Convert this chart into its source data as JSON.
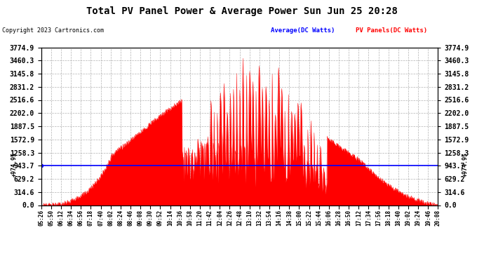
{
  "title": "Total PV Panel Power & Average Power Sun Jun 25 20:28",
  "copyright": "Copyright 2023 Cartronics.com",
  "legend_avg": "Average(DC Watts)",
  "legend_pv": "PV Panels(DC Watts)",
  "ymin": 0.0,
  "ymax": 3774.9,
  "yticks": [
    0.0,
    314.6,
    629.2,
    943.7,
    1258.3,
    1572.9,
    1887.5,
    2202.0,
    2516.6,
    2831.2,
    3145.8,
    3460.3,
    3774.9
  ],
  "average_line_y": 943.7,
  "side_label_value": 974.95,
  "bg_color": "#ffffff",
  "grid_color": "#aaaaaa",
  "fill_color": "#ff0000",
  "line_color": "#0000ff",
  "title_color": "#000000",
  "copyright_color": "#000000",
  "avg_label_color": "#0000ff",
  "pv_label_color": "#ff0000",
  "x_tick_labels": [
    "05:26",
    "05:50",
    "06:12",
    "06:34",
    "06:56",
    "07:18",
    "07:40",
    "08:02",
    "08:24",
    "08:46",
    "09:08",
    "09:30",
    "09:52",
    "10:14",
    "10:36",
    "10:58",
    "11:20",
    "11:42",
    "12:04",
    "12:26",
    "12:48",
    "13:10",
    "13:32",
    "13:54",
    "14:16",
    "14:38",
    "15:00",
    "15:22",
    "15:44",
    "16:06",
    "16:28",
    "16:50",
    "17:12",
    "17:34",
    "17:56",
    "18:18",
    "18:40",
    "19:02",
    "19:24",
    "19:46",
    "20:08"
  ]
}
